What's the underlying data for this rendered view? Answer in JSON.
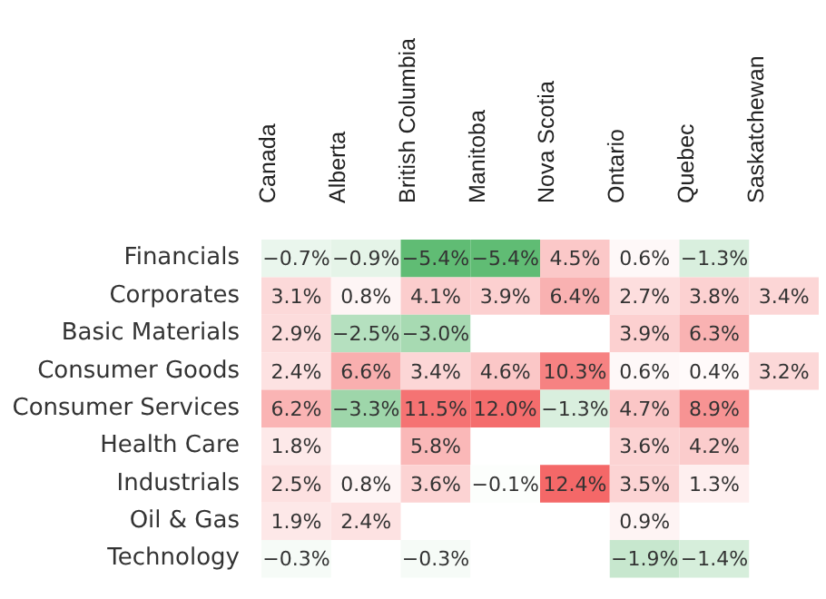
{
  "chart_data": {
    "type": "heatmap",
    "categories": [
      "Canada",
      "Alberta",
      "British Columbia",
      "Manitoba",
      "Nova Scotia",
      "Ontario",
      "Quebec",
      "Saskatchewan"
    ],
    "y_categories": [
      "Financials",
      "Corporates",
      "Basic Materials",
      "Consumer Goods",
      "Consumer Services",
      "Health Care",
      "Industrials",
      "Oil & Gas",
      "Technology"
    ],
    "cells": [
      [
        -0.7,
        -0.9,
        -5.4,
        -5.4,
        4.5,
        0.6,
        -1.3,
        null
      ],
      [
        3.1,
        0.8,
        4.1,
        3.9,
        6.4,
        2.7,
        3.8,
        3.4
      ],
      [
        2.9,
        -2.5,
        -3.0,
        null,
        null,
        3.9,
        6.3,
        null
      ],
      [
        2.4,
        6.6,
        3.4,
        4.6,
        10.3,
        0.6,
        0.4,
        3.2
      ],
      [
        6.2,
        -3.3,
        11.5,
        12.0,
        -1.3,
        4.7,
        8.9,
        null
      ],
      [
        1.8,
        null,
        5.8,
        null,
        null,
        3.6,
        4.2,
        null
      ],
      [
        2.5,
        0.8,
        3.6,
        -0.1,
        12.4,
        3.5,
        1.3,
        null
      ],
      [
        1.9,
        2.4,
        null,
        null,
        null,
        0.9,
        null,
        null
      ],
      [
        -0.3,
        null,
        -0.3,
        null,
        null,
        -1.9,
        -1.4,
        null
      ]
    ],
    "cell_labels": [
      [
        "−0.7%",
        "−0.9%",
        "−5.4%",
        "−5.4%",
        "4.5%",
        "0.6%",
        "−1.3%",
        null
      ],
      [
        "3.1%",
        "0.8%",
        "4.1%",
        "3.9%",
        "6.4%",
        "2.7%",
        "3.8%",
        "3.4%"
      ],
      [
        "2.9%",
        "−2.5%",
        "−3.0%",
        null,
        null,
        "3.9%",
        "6.3%",
        null
      ],
      [
        "2.4%",
        "6.6%",
        "3.4%",
        "4.6%",
        "10.3%",
        "0.6%",
        "0.4%",
        "3.2%"
      ],
      [
        "6.2%",
        "−3.3%",
        "11.5%",
        "12.0%",
        "−1.3%",
        "4.7%",
        "8.9%",
        null
      ],
      [
        "1.8%",
        null,
        "5.8%",
        null,
        null,
        "3.6%",
        "4.2%",
        null
      ],
      [
        "2.5%",
        "0.8%",
        "3.6%",
        "−0.1%",
        "12.4%",
        "3.5%",
        "1.3%",
        null
      ],
      [
        "1.9%",
        "2.4%",
        null,
        null,
        null,
        "0.9%",
        null,
        null
      ],
      [
        "−0.3%",
        null,
        "−0.3%",
        null,
        null,
        "−1.9%",
        "−1.4%",
        null
      ]
    ]
  }
}
